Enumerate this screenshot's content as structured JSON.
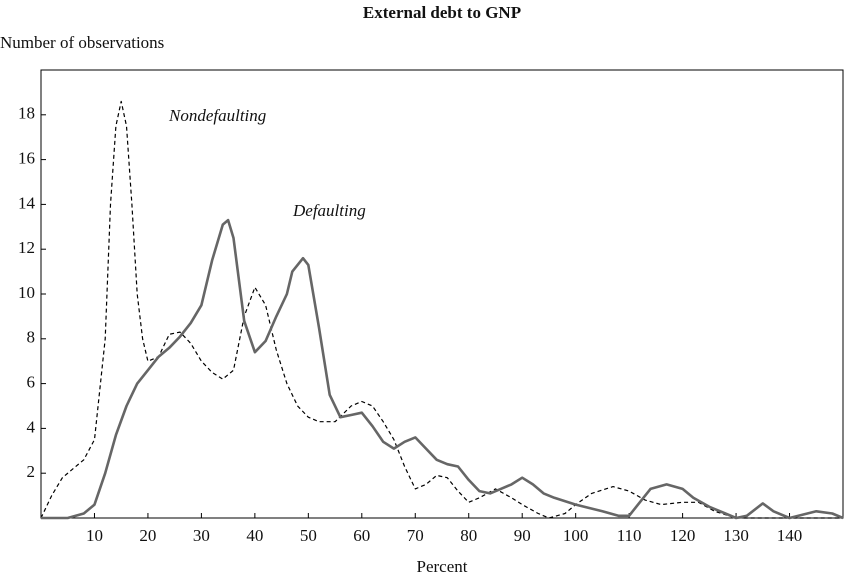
{
  "chart_data": {
    "type": "line",
    "title": "External debt to GNP",
    "y_label": "Number of observations",
    "x_label": "Percent",
    "annotations": [
      "Nondefaulting",
      "Defaulting"
    ],
    "xlim": [
      0,
      150
    ],
    "ylim": [
      0,
      20
    ],
    "xticks": [
      10,
      20,
      30,
      40,
      50,
      60,
      70,
      80,
      90,
      100,
      110,
      120,
      130,
      140
    ],
    "yticks": [
      2,
      4,
      6,
      8,
      10,
      12,
      14,
      16,
      18
    ],
    "series": [
      {
        "name": "Nondefaulting",
        "color": "#000000",
        "dash": "4,3",
        "x": [
          0,
          2,
          4,
          6,
          8,
          10,
          12,
          13,
          14,
          15,
          16,
          17,
          18,
          19,
          20,
          22,
          24,
          26,
          28,
          30,
          32,
          34,
          36,
          38,
          40,
          42,
          44,
          46,
          48,
          50,
          52,
          55,
          58,
          60,
          62,
          64,
          66,
          68,
          70,
          72,
          74,
          76,
          78,
          80,
          82,
          85,
          88,
          90,
          93,
          95,
          98,
          100,
          103,
          107,
          110,
          113,
          116,
          120,
          123,
          126,
          130,
          135,
          140,
          145,
          150
        ],
        "values": [
          0,
          1,
          1.8,
          2.2,
          2.6,
          3.5,
          8,
          14,
          17.5,
          18.6,
          17.5,
          14,
          10,
          8,
          7,
          7.2,
          8.2,
          8.3,
          7.8,
          7,
          6.5,
          6.2,
          6.6,
          9,
          10.3,
          9.5,
          7.5,
          6,
          5,
          4.5,
          4.3,
          4.3,
          5,
          5.2,
          5,
          4.3,
          3.5,
          2.3,
          1.3,
          1.5,
          1.9,
          1.8,
          1.2,
          0.7,
          0.9,
          1.3,
          0.9,
          0.6,
          0.2,
          0,
          0.2,
          0.6,
          1.1,
          1.4,
          1.2,
          0.8,
          0.6,
          0.7,
          0.7,
          0.3,
          0,
          0,
          0,
          0,
          0
        ]
      },
      {
        "name": "Defaulting",
        "color": "#666666",
        "dash": "none",
        "x": [
          0,
          5,
          8,
          10,
          12,
          14,
          16,
          18,
          20,
          22,
          24,
          26,
          28,
          30,
          32,
          34,
          35,
          36,
          38,
          40,
          42,
          44,
          46,
          47,
          49,
          50,
          52,
          54,
          56,
          58,
          60,
          62,
          64,
          66,
          68,
          70,
          72,
          74,
          76,
          78,
          80,
          82,
          84,
          86,
          88,
          90,
          92,
          94,
          96,
          100,
          105,
          108,
          110,
          112,
          114,
          117,
          120,
          122,
          125,
          128,
          130,
          132,
          135,
          137,
          140,
          145,
          148,
          150
        ],
        "values": [
          0,
          0,
          0.2,
          0.6,
          2,
          3.7,
          5,
          6,
          6.6,
          7.2,
          7.6,
          8.1,
          8.7,
          9.5,
          11.5,
          13.1,
          13.3,
          12.5,
          8.8,
          7.4,
          7.9,
          9,
          10,
          11,
          11.6,
          11.3,
          8.5,
          5.5,
          4.5,
          4.6,
          4.7,
          4.1,
          3.4,
          3.1,
          3.4,
          3.6,
          3.1,
          2.6,
          2.4,
          2.3,
          1.7,
          1.2,
          1.1,
          1.3,
          1.5,
          1.8,
          1.5,
          1.1,
          0.9,
          0.6,
          0.3,
          0.1,
          0.1,
          0.7,
          1.3,
          1.5,
          1.3,
          0.9,
          0.5,
          0.2,
          0,
          0.1,
          0.65,
          0.3,
          0,
          0.3,
          0.2,
          0
        ]
      }
    ]
  }
}
